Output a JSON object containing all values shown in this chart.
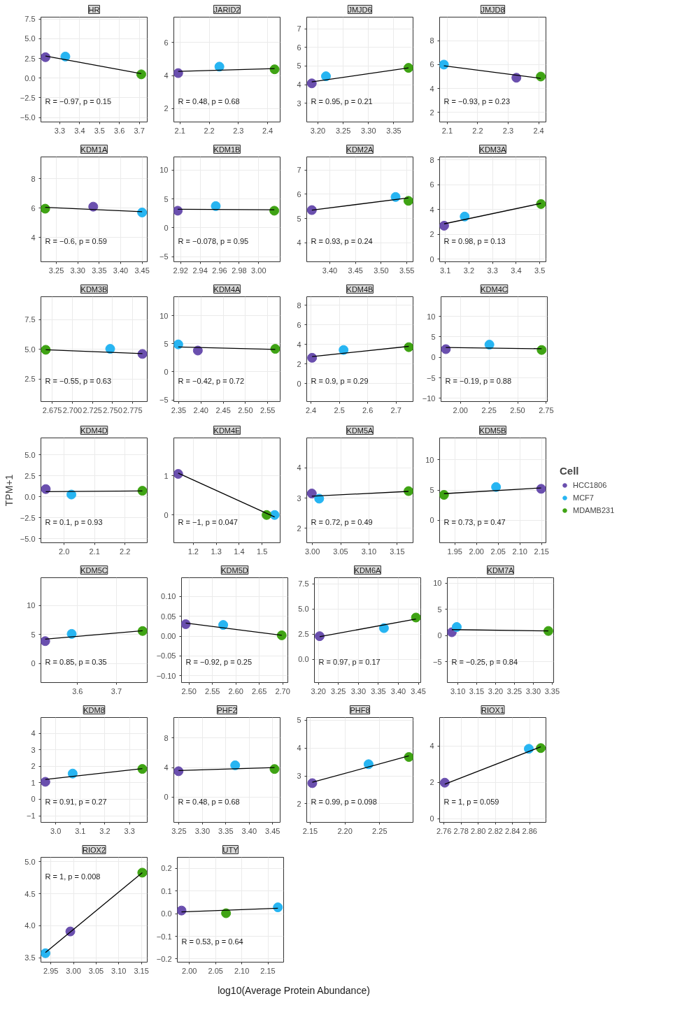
{
  "chart_data": [
    {
      "type": "scatter",
      "title": "HR",
      "marker": "circle",
      "grid": true,
      "xlim": [
        3.205,
        3.74
      ],
      "ylim": [
        -5.56,
        7.74
      ],
      "xticks": [
        3.3,
        3.4,
        3.5,
        3.6,
        3.7
      ],
      "yticks": [
        {
          "value": -5,
          "label": "−5.0"
        },
        {
          "value": -2.5,
          "label": "−2.5"
        },
        {
          "value": 0,
          "label": "0.0"
        },
        2.5,
        {
          "value": 5,
          "label": "5.0"
        },
        7.5
      ],
      "annotations": [
        "R = −0.97, p = 0.15"
      ],
      "series": [
        {
          "color": "#6a4fae",
          "x": [
            3.228
          ],
          "values": [
            2.66
          ]
        },
        {
          "color": "#27b5f2",
          "x": [
            3.328
          ],
          "values": [
            2.74
          ]
        },
        {
          "color": "#3fa314",
          "x": [
            3.71
          ],
          "values": [
            0.48
          ]
        },
        {
          "type": "line",
          "marker": "none",
          "color": "#000000",
          "x": [
            3.228,
            3.71
          ],
          "values": [
            2.8,
            0.56
          ]
        }
      ]
    },
    {
      "type": "scatter",
      "title": "JARID2",
      "marker": "circle",
      "grid": true,
      "xlim": [
        2.079,
        2.443
      ],
      "ylim": [
        1.19,
        7.54
      ],
      "xticks": [
        2.1,
        2.2,
        2.3,
        2.4
      ],
      "yticks": [
        2,
        4,
        6
      ],
      "annotations": [
        "R = 0.48, p = 0.68"
      ],
      "series": [
        {
          "color": "#6a4fae",
          "x": [
            2.094
          ],
          "values": [
            4.15
          ]
        },
        {
          "color": "#27b5f2",
          "x": [
            2.235
          ],
          "values": [
            4.54
          ]
        },
        {
          "color": "#3fa314",
          "x": [
            2.424
          ],
          "values": [
            4.38
          ]
        },
        {
          "type": "line",
          "marker": "none",
          "color": "#000000",
          "x": [
            2.094,
            2.424
          ],
          "values": [
            4.25,
            4.42
          ]
        }
      ]
    },
    {
      "type": "scatter",
      "title": "JMJD6",
      "marker": "circle",
      "grid": true,
      "xlim": [
        3.178,
        3.388
      ],
      "ylim": [
        2.0,
        7.62
      ],
      "xticks": [
        {
          "value": 3.2,
          "label": "3.20"
        },
        3.25,
        {
          "value": 3.3,
          "label": "3.30"
        },
        3.35
      ],
      "yticks": [
        3,
        4,
        5,
        6,
        7
      ],
      "annotations": [
        "R = 0.95, p = 0.21"
      ],
      "series": [
        {
          "color": "#6a4fae",
          "x": [
            3.188
          ],
          "values": [
            4.07
          ]
        },
        {
          "color": "#27b5f2",
          "x": [
            3.216
          ],
          "values": [
            4.45
          ]
        },
        {
          "color": "#3fa314",
          "x": [
            3.379
          ],
          "values": [
            4.9
          ]
        },
        {
          "type": "line",
          "marker": "none",
          "color": "#000000",
          "x": [
            3.188,
            3.379
          ],
          "values": [
            4.15,
            4.9
          ]
        }
      ]
    },
    {
      "type": "scatter",
      "title": "JMJD8",
      "marker": "circle",
      "grid": true,
      "xlim": [
        2.075,
        2.424
      ],
      "ylim": [
        1.2,
        9.97
      ],
      "xticks": [
        2.1,
        2.2,
        2.3,
        2.4
      ],
      "yticks": [
        2,
        4,
        6,
        8
      ],
      "annotations": [
        "R = −0.93, p = 0.23"
      ],
      "series": [
        {
          "color": "#6a4fae",
          "x": [
            2.327
          ],
          "values": [
            4.9
          ]
        },
        {
          "color": "#27b5f2",
          "x": [
            2.089
          ],
          "values": [
            6.0
          ]
        },
        {
          "color": "#3fa314",
          "x": [
            2.407
          ],
          "values": [
            5.0
          ]
        },
        {
          "type": "line",
          "marker": "none",
          "color": "#000000",
          "x": [
            2.089,
            2.407
          ],
          "values": [
            5.9,
            4.85
          ]
        }
      ]
    },
    {
      "type": "scatter",
      "title": "KDM1A",
      "marker": "circle",
      "grid": true,
      "xlim": [
        3.214,
        3.462
      ],
      "ylim": [
        2.33,
        9.5
      ],
      "xticks": [
        3.25,
        {
          "value": 3.3,
          "label": "3.30"
        },
        3.35,
        {
          "value": 3.4,
          "label": "3.40"
        },
        3.45
      ],
      "yticks": [
        4,
        6,
        8
      ],
      "annotations": [
        "R = −0.6, p = 0.59"
      ],
      "series": [
        {
          "color": "#6a4fae",
          "x": [
            3.336
          ],
          "values": [
            6.1
          ]
        },
        {
          "color": "#27b5f2",
          "x": [
            3.45
          ],
          "values": [
            5.7
          ]
        },
        {
          "color": "#3fa314",
          "x": [
            3.224
          ],
          "values": [
            5.96
          ]
        },
        {
          "type": "line",
          "marker": "none",
          "color": "#000000",
          "x": [
            3.224,
            3.45
          ],
          "values": [
            6.05,
            5.75
          ]
        }
      ]
    },
    {
      "type": "scatter",
      "title": "KDM1B",
      "marker": "circle",
      "grid": true,
      "xlim": [
        2.913,
        3.022
      ],
      "ylim": [
        -5.9,
        12.27
      ],
      "xticks": [
        2.92,
        2.94,
        2.96,
        2.98,
        {
          "value": 3,
          "label": "3.00"
        }
      ],
      "yticks": [
        {
          "value": -5,
          "label": "−5"
        },
        0,
        5,
        10
      ],
      "annotations": [
        "R = −0.078, p = 0.95"
      ],
      "series": [
        {
          "color": "#6a4fae",
          "x": [
            2.917
          ],
          "values": [
            2.95
          ]
        },
        {
          "color": "#27b5f2",
          "x": [
            2.956
          ],
          "values": [
            3.75
          ]
        },
        {
          "color": "#3fa314",
          "x": [
            3.016
          ],
          "values": [
            2.95
          ]
        },
        {
          "type": "line",
          "marker": "none",
          "color": "#000000",
          "x": [
            2.917,
            3.016
          ],
          "values": [
            3.2,
            3.1
          ]
        }
      ]
    },
    {
      "type": "scatter",
      "title": "KDM2A",
      "marker": "circle",
      "grid": true,
      "xlim": [
        3.355,
        3.562
      ],
      "ylim": [
        3.22,
        7.54
      ],
      "xticks": [
        {
          "value": 3.4,
          "label": "3.40"
        },
        3.45,
        {
          "value": 3.5,
          "label": "3.50"
        },
        3.55
      ],
      "yticks": [
        4,
        5,
        6,
        7
      ],
      "annotations": [
        "R = 0.93, p = 0.24"
      ],
      "series": [
        {
          "color": "#6a4fae",
          "x": [
            3.365
          ],
          "values": [
            5.35
          ]
        },
        {
          "color": "#27b5f2",
          "x": [
            3.528
          ],
          "values": [
            5.89
          ]
        },
        {
          "color": "#3fa314",
          "x": [
            3.553
          ],
          "values": [
            5.73
          ]
        },
        {
          "type": "line",
          "marker": "none",
          "color": "#000000",
          "x": [
            3.365,
            3.553
          ],
          "values": [
            5.35,
            5.85
          ]
        }
      ]
    },
    {
      "type": "scatter",
      "title": "KDM3A",
      "marker": "circle",
      "grid": true,
      "xlim": [
        3.076,
        3.526
      ],
      "ylim": [
        -0.21,
        8.25
      ],
      "xticks": [
        3.1,
        3.2,
        3.3,
        3.4,
        3.5
      ],
      "yticks": [
        0,
        2,
        4,
        6,
        8
      ],
      "annotations": [
        "R = 0.98, p = 0.13"
      ],
      "series": [
        {
          "color": "#6a4fae",
          "x": [
            3.095
          ],
          "values": [
            2.7
          ]
        },
        {
          "color": "#27b5f2",
          "x": [
            3.182
          ],
          "values": [
            3.44
          ]
        },
        {
          "color": "#3fa314",
          "x": [
            3.505
          ],
          "values": [
            4.45
          ]
        },
        {
          "type": "line",
          "marker": "none",
          "color": "#000000",
          "x": [
            3.095,
            3.505
          ],
          "values": [
            2.85,
            4.5
          ]
        }
      ]
    },
    {
      "type": "scatter",
      "title": "KDM3B",
      "marker": "circle",
      "grid": true,
      "xlim": [
        2.661,
        2.793
      ],
      "ylim": [
        0.61,
        9.44
      ],
      "xticks": [
        2.675,
        {
          "value": 2.7,
          "label": "2.700"
        },
        2.725,
        {
          "value": 2.75,
          "label": "2.750"
        },
        2.775
      ],
      "yticks": [
        2.5,
        {
          "value": 5,
          "label": "5.0"
        },
        7.5
      ],
      "annotations": [
        "R = −0.55, p = 0.63"
      ],
      "series": [
        {
          "color": "#6a4fae",
          "x": [
            2.787
          ],
          "values": [
            4.62
          ]
        },
        {
          "color": "#27b5f2",
          "x": [
            2.747
          ],
          "values": [
            5.05
          ]
        },
        {
          "color": "#3fa314",
          "x": [
            2.667
          ],
          "values": [
            4.97
          ]
        },
        {
          "type": "line",
          "marker": "none",
          "color": "#000000",
          "x": [
            2.667,
            2.787
          ],
          "values": [
            4.97,
            4.65
          ]
        }
      ]
    },
    {
      "type": "scatter",
      "title": "KDM4A",
      "marker": "circle",
      "grid": true,
      "xlim": [
        2.339,
        2.578
      ],
      "ylim": [
        -5.3,
        13.4
      ],
      "xticks": [
        2.35,
        {
          "value": 2.4,
          "label": "2.40"
        },
        2.45,
        {
          "value": 2.5,
          "label": "2.50"
        },
        2.55
      ],
      "yticks": [
        {
          "value": -5,
          "label": "−5"
        },
        0,
        5,
        10
      ],
      "annotations": [
        "R = −0.42, p = 0.72"
      ],
      "series": [
        {
          "color": "#6a4fae",
          "x": [
            2.393
          ],
          "values": [
            3.8
          ]
        },
        {
          "color": "#27b5f2",
          "x": [
            2.349
          ],
          "values": [
            4.9
          ]
        },
        {
          "color": "#3fa314",
          "x": [
            2.567
          ],
          "values": [
            4.1
          ]
        },
        {
          "type": "line",
          "marker": "none",
          "color": "#000000",
          "x": [
            2.349,
            2.567
          ],
          "values": [
            4.45,
            4.0
          ]
        }
      ]
    },
    {
      "type": "scatter",
      "title": "KDM4B",
      "marker": "circle",
      "grid": true,
      "xlim": [
        2.385,
        2.76
      ],
      "ylim": [
        -1.85,
        8.88
      ],
      "xticks": [
        2.4,
        2.5,
        2.6,
        2.7
      ],
      "yticks": [
        0,
        2,
        4,
        6,
        8
      ],
      "annotations": [
        "R = 0.9, p = 0.29"
      ],
      "series": [
        {
          "color": "#6a4fae",
          "x": [
            2.404
          ],
          "values": [
            2.63
          ]
        },
        {
          "color": "#27b5f2",
          "x": [
            2.515
          ],
          "values": [
            3.43
          ]
        },
        {
          "color": "#3fa314",
          "x": [
            2.745
          ],
          "values": [
            3.72
          ]
        },
        {
          "type": "line",
          "marker": "none",
          "color": "#000000",
          "x": [
            2.404,
            2.745
          ],
          "values": [
            2.75,
            3.8
          ]
        }
      ]
    },
    {
      "type": "scatter",
      "title": "KDM4C",
      "marker": "circle",
      "grid": true,
      "xlim": [
        1.83,
        2.76
      ],
      "ylim": [
        -10.8,
        14.8
      ],
      "xticks": [
        {
          "value": 2,
          "label": "2.00"
        },
        2.25,
        {
          "value": 2.5,
          "label": "2.50"
        },
        2.75
      ],
      "yticks": [
        {
          "value": -10,
          "label": "−10"
        },
        {
          "value": -5,
          "label": "−5"
        },
        0,
        5,
        10
      ],
      "annotations": [
        "R = −0.19, p = 0.88"
      ],
      "series": [
        {
          "color": "#6a4fae",
          "x": [
            1.872
          ],
          "values": [
            2.0
          ]
        },
        {
          "color": "#27b5f2",
          "x": [
            2.253
          ],
          "values": [
            3.1
          ]
        },
        {
          "color": "#3fa314",
          "x": [
            2.71
          ],
          "values": [
            1.8
          ]
        },
        {
          "type": "line",
          "marker": "none",
          "color": "#000000",
          "x": [
            1.872,
            2.71
          ],
          "values": [
            2.4,
            2.1
          ]
        }
      ]
    },
    {
      "type": "scatter",
      "title": "KDM4D",
      "ylabel": "TPM+1",
      "marker": "circle",
      "grid": true,
      "xlim": [
        1.924,
        2.273
      ],
      "ylim": [
        -5.5,
        7.0
      ],
      "xticks": [
        {
          "value": 2,
          "label": "2.0"
        },
        2.1,
        2.2
      ],
      "yticks": [
        {
          "value": -5,
          "label": "−5.0"
        },
        {
          "value": -2.5,
          "label": "−2.5"
        },
        {
          "value": 0,
          "label": "0.0"
        },
        2.5,
        {
          "value": 5,
          "label": "5.0"
        }
      ],
      "annotations": [
        "R = 0.1, p = 0.93"
      ],
      "series": [
        {
          "color": "#6a4fae",
          "x": [
            1.94
          ],
          "values": [
            0.9
          ]
        },
        {
          "color": "#27b5f2",
          "x": [
            2.024
          ],
          "values": [
            0.25
          ]
        },
        {
          "color": "#3fa314",
          "x": [
            2.257
          ],
          "values": [
            0.7
          ]
        },
        {
          "type": "line",
          "marker": "none",
          "color": "#000000",
          "x": [
            1.94,
            2.257
          ],
          "values": [
            0.6,
            0.68
          ]
        }
      ]
    },
    {
      "type": "scatter",
      "title": "KDM4E",
      "marker": "circle",
      "grid": true,
      "xlim": [
        1.115,
        1.579
      ],
      "ylim": [
        -0.71,
        1.97
      ],
      "xticks": [
        1.2,
        1.3,
        1.4,
        1.5
      ],
      "yticks": [
        0,
        1
      ],
      "annotations": [
        "R = −1, p = 0.047"
      ],
      "series": [
        {
          "color": "#6a4fae",
          "x": [
            1.134
          ],
          "values": [
            1.05
          ]
        },
        {
          "color": "#27b5f2",
          "x": [
            1.555
          ],
          "values": [
            0
          ]
        },
        {
          "color": "#3fa314",
          "x": [
            1.52
          ],
          "values": [
            0
          ]
        },
        {
          "type": "line",
          "marker": "none",
          "color": "#000000",
          "x": [
            1.134,
            1.555
          ],
          "values": [
            1.07,
            -0.05
          ]
        }
      ]
    },
    {
      "type": "scatter",
      "title": "KDM5A",
      "marker": "circle",
      "grid": true,
      "xlim": [
        2.99,
        3.178
      ],
      "ylim": [
        1.52,
        4.99
      ],
      "xticks": [
        {
          "value": 3,
          "label": "3.00"
        },
        3.05,
        {
          "value": 3.1,
          "label": "3.10"
        },
        3.15
      ],
      "yticks": [
        2,
        3,
        4
      ],
      "annotations": [
        "R = 0.72, p = 0.49"
      ],
      "series": [
        {
          "color": "#6a4fae",
          "x": [
            2.999
          ],
          "values": [
            3.15
          ]
        },
        {
          "color": "#27b5f2",
          "x": [
            3.012
          ],
          "values": [
            2.98
          ]
        },
        {
          "color": "#3fa314",
          "x": [
            3.17
          ],
          "values": [
            3.23
          ]
        },
        {
          "type": "line",
          "marker": "none",
          "color": "#000000",
          "x": [
            2.999,
            3.17
          ],
          "values": [
            3.06,
            3.22
          ]
        }
      ]
    },
    {
      "type": "scatter",
      "title": "KDM5B",
      "legend": "right",
      "legend_title": "Cell",
      "marker": "circle",
      "grid": true,
      "xlim": [
        1.915,
        2.16
      ],
      "ylim": [
        -3.7,
        13.6
      ],
      "xticks": [
        1.95,
        {
          "value": 2,
          "label": "2.00"
        },
        2.05,
        {
          "value": 2.1,
          "label": "2.10"
        },
        2.15
      ],
      "yticks": [
        0,
        5,
        10
      ],
      "annotations": [
        "R = 0.73, p = 0.47"
      ],
      "series": [
        {
          "name": "HCC1806",
          "color": "#6a4fae",
          "x": [
            2.149
          ],
          "values": [
            5.2
          ]
        },
        {
          "name": "MCF7",
          "color": "#27b5f2",
          "x": [
            2.045
          ],
          "values": [
            5.5
          ]
        },
        {
          "name": "MDAMB231",
          "color": "#3fa314",
          "x": [
            1.925
          ],
          "values": [
            4.2
          ]
        },
        {
          "type": "line",
          "marker": "none",
          "color": "#000000",
          "x": [
            1.925,
            2.149
          ],
          "values": [
            4.4,
            5.35
          ]
        }
      ]
    },
    {
      "type": "scatter",
      "title": "KDM5C",
      "marker": "circle",
      "grid": true,
      "xlim": [
        3.506,
        3.779
      ],
      "ylim": [
        -3.3,
        14.8
      ],
      "xticks": [
        3.6,
        3.7
      ],
      "yticks": [
        0,
        5,
        10
      ],
      "annotations": [
        "R = 0.85, p = 0.35"
      ],
      "series": [
        {
          "color": "#6a4fae",
          "x": [
            3.517
          ],
          "values": [
            3.85
          ]
        },
        {
          "color": "#27b5f2",
          "x": [
            3.585
          ],
          "values": [
            5.1
          ]
        },
        {
          "color": "#3fa314",
          "x": [
            3.767
          ],
          "values": [
            5.6
          ]
        },
        {
          "type": "line",
          "marker": "none",
          "color": "#000000",
          "x": [
            3.517,
            3.767
          ],
          "values": [
            4.2,
            5.65
          ]
        }
      ]
    },
    {
      "type": "scatter",
      "title": "KDM5D",
      "marker": "circle",
      "grid": true,
      "xlim": [
        2.484,
        2.711
      ],
      "ylim": [
        -0.117,
        0.147
      ],
      "xticks": [
        {
          "value": 2.5,
          "label": "2.50"
        },
        2.55,
        {
          "value": 2.6,
          "label": "2.60"
        },
        2.65,
        {
          "value": 2.7,
          "label": "2.70"
        }
      ],
      "yticks": [
        {
          "value": -0.1,
          "label": "−0.10"
        },
        {
          "value": -0.05,
          "label": "−0.05"
        },
        {
          "value": 0,
          "label": "0.00"
        },
        0.05,
        {
          "value": 0.1,
          "label": "0.10"
        }
      ],
      "annotations": [
        "R = −0.92, p = 0.25"
      ],
      "series": [
        {
          "color": "#6a4fae",
          "x": [
            2.493
          ],
          "values": [
            0.03
          ]
        },
        {
          "color": "#27b5f2",
          "x": [
            2.573
          ],
          "values": [
            0.028
          ]
        },
        {
          "color": "#3fa314",
          "x": [
            2.698
          ],
          "values": [
            0.002
          ]
        },
        {
          "type": "line",
          "marker": "none",
          "color": "#000000",
          "x": [
            2.493,
            2.698
          ],
          "values": [
            0.033,
            0.002
          ]
        }
      ]
    },
    {
      "type": "scatter",
      "title": "KDM6A",
      "marker": "circle",
      "grid": true,
      "xlim": [
        3.19,
        3.456
      ],
      "ylim": [
        -2.3,
        8.1
      ],
      "xticks": [
        {
          "value": 3.2,
          "label": "3.20"
        },
        3.25,
        {
          "value": 3.3,
          "label": "3.30"
        },
        3.35,
        {
          "value": 3.4,
          "label": "3.40"
        },
        3.45
      ],
      "yticks": [
        {
          "value": 0,
          "label": "0.0"
        },
        2.5,
        {
          "value": 5,
          "label": "5.0"
        },
        7.5
      ],
      "annotations": [
        "R = 0.97, p = 0.17"
      ],
      "series": [
        {
          "color": "#6a4fae",
          "x": [
            3.203
          ],
          "values": [
            2.3
          ]
        },
        {
          "color": "#27b5f2",
          "x": [
            3.364
          ],
          "values": [
            3.1
          ]
        },
        {
          "color": "#3fa314",
          "x": [
            3.444
          ],
          "values": [
            4.15
          ]
        },
        {
          "type": "line",
          "marker": "none",
          "color": "#000000",
          "x": [
            3.203,
            3.444
          ],
          "values": [
            2.25,
            4.0
          ]
        }
      ]
    },
    {
      "type": "scatter",
      "title": "KDM7A",
      "marker": "circle",
      "grid": true,
      "xlim": [
        3.072,
        3.354
      ],
      "ylim": [
        -9.0,
        11.0
      ],
      "xticks": [
        {
          "value": 3.1,
          "label": "3.10"
        },
        3.15,
        {
          "value": 3.2,
          "label": "3.20"
        },
        3.25,
        {
          "value": 3.3,
          "label": "3.30"
        },
        3.35
      ],
      "yticks": [
        {
          "value": -5,
          "label": "−5"
        },
        0,
        5,
        10
      ],
      "annotations": [
        "R = −0.25, p = 0.84"
      ],
      "series": [
        {
          "color": "#6a4fae",
          "x": [
            3.084
          ],
          "values": [
            0.6
          ]
        },
        {
          "color": "#27b5f2",
          "x": [
            3.097
          ],
          "values": [
            1.6
          ]
        },
        {
          "color": "#3fa314",
          "x": [
            3.34
          ],
          "values": [
            0.85
          ]
        },
        {
          "type": "line",
          "marker": "none",
          "color": "#000000",
          "x": [
            3.084,
            3.34
          ],
          "values": [
            1.1,
            0.85
          ]
        }
      ]
    },
    {
      "type": "scatter",
      "title": "KDM8",
      "marker": "circle",
      "grid": true,
      "xlim": [
        2.94,
        3.372
      ],
      "ylim": [
        -1.4,
        4.96
      ],
      "xticks": [
        {
          "value": 3,
          "label": "3.0"
        },
        3.1,
        3.2,
        3.3
      ],
      "yticks": [
        {
          "value": -1,
          "label": "−1"
        },
        0,
        1,
        2,
        3,
        4
      ],
      "annotations": [
        "R = 0.91, p = 0.27"
      ],
      "series": [
        {
          "color": "#6a4fae",
          "x": [
            2.958
          ],
          "values": [
            1.06
          ]
        },
        {
          "color": "#27b5f2",
          "x": [
            3.069
          ],
          "values": [
            1.56
          ]
        },
        {
          "color": "#3fa314",
          "x": [
            3.352
          ],
          "values": [
            1.84
          ]
        },
        {
          "type": "line",
          "marker": "none",
          "color": "#000000",
          "x": [
            2.958,
            3.352
          ],
          "values": [
            1.2,
            1.86
          ]
        }
      ]
    },
    {
      "type": "scatter",
      "title": "PHF2",
      "marker": "circle",
      "grid": true,
      "xlim": [
        3.239,
        3.466
      ],
      "ylim": [
        -3.4,
        10.75
      ],
      "xticks": [
        3.25,
        {
          "value": 3.3,
          "label": "3.30"
        },
        3.35,
        {
          "value": 3.4,
          "label": "3.40"
        },
        3.45
      ],
      "yticks": [
        0,
        4,
        8
      ],
      "annotations": [
        "R = 0.48, p = 0.68"
      ],
      "series": [
        {
          "color": "#6a4fae",
          "x": [
            3.249
          ],
          "values": [
            3.5
          ]
        },
        {
          "color": "#27b5f2",
          "x": [
            3.37
          ],
          "values": [
            4.3
          ]
        },
        {
          "color": "#3fa314",
          "x": [
            3.454
          ],
          "values": [
            3.8
          ]
        },
        {
          "type": "line",
          "marker": "none",
          "color": "#000000",
          "x": [
            3.249,
            3.454
          ],
          "values": [
            3.6,
            4.0
          ]
        }
      ]
    },
    {
      "type": "scatter",
      "title": "PHF8",
      "marker": "circle",
      "grid": true,
      "xlim": [
        2.145,
        2.298
      ],
      "ylim": [
        1.33,
        5.1
      ],
      "xticks": [
        2.15,
        {
          "value": 2.2,
          "label": "2.20"
        },
        2.25
      ],
      "yticks": [
        2,
        3,
        4,
        5
      ],
      "annotations": [
        "R = 0.99, p = 0.098"
      ],
      "series": [
        {
          "color": "#6a4fae",
          "x": [
            2.153
          ],
          "values": [
            2.74
          ]
        },
        {
          "color": "#27b5f2",
          "x": [
            2.234
          ],
          "values": [
            3.42
          ]
        },
        {
          "color": "#3fa314",
          "x": [
            2.292
          ],
          "values": [
            3.68
          ]
        },
        {
          "type": "line",
          "marker": "none",
          "color": "#000000",
          "x": [
            2.153,
            2.292
          ],
          "values": [
            2.77,
            3.72
          ]
        }
      ]
    },
    {
      "type": "scatter",
      "title": "RIOX1",
      "marker": "circle",
      "grid": true,
      "xlim": [
        2.755,
        2.879
      ],
      "ylim": [
        -0.2,
        5.56
      ],
      "xticks": [
        2.76,
        2.78,
        {
          "value": 2.8,
          "label": "2.80"
        },
        2.82,
        2.84,
        2.86
      ],
      "yticks": [
        0,
        2,
        4
      ],
      "annotations": [
        "R = 1, p = 0.059"
      ],
      "series": [
        {
          "color": "#6a4fae",
          "x": [
            2.761
          ],
          "values": [
            1.98
          ]
        },
        {
          "color": "#27b5f2",
          "x": [
            2.859
          ],
          "values": [
            3.84
          ]
        },
        {
          "color": "#3fa314",
          "x": [
            2.873
          ],
          "values": [
            3.88
          ]
        },
        {
          "type": "line",
          "marker": "none",
          "color": "#000000",
          "x": [
            2.761,
            2.873
          ],
          "values": [
            1.9,
            3.95
          ]
        }
      ]
    },
    {
      "type": "scatter",
      "title": "RIOX2",
      "marker": "circle",
      "grid": true,
      "xlim": [
        2.928,
        3.163
      ],
      "ylim": [
        3.43,
        5.07
      ],
      "xticks": [
        2.95,
        {
          "value": 3,
          "label": "3.00"
        },
        3.05,
        {
          "value": 3.1,
          "label": "3.10"
        },
        3.15
      ],
      "yticks": [
        3.5,
        {
          "value": 4,
          "label": "4.0"
        },
        4.5,
        {
          "value": 5,
          "label": "5.0"
        }
      ],
      "annotations": [
        "R = 1, p = 0.008"
      ],
      "series": [
        {
          "color": "#6a4fae",
          "x": [
            2.993
          ],
          "values": [
            3.91
          ]
        },
        {
          "color": "#27b5f2",
          "x": [
            2.938
          ],
          "values": [
            3.57
          ]
        },
        {
          "color": "#3fa314",
          "x": [
            3.152
          ],
          "values": [
            4.83
          ]
        },
        {
          "type": "line",
          "marker": "none",
          "color": "#000000",
          "x": [
            2.938,
            3.152
          ],
          "values": [
            3.58,
            4.83
          ]
        }
      ]
    },
    {
      "type": "scatter",
      "title": "UTY",
      "xlabel": "log10(Average Protein Abundance)",
      "marker": "circle",
      "grid": true,
      "xlim": [
        1.977,
        2.18
      ],
      "ylim": [
        -0.214,
        0.249
      ],
      "xticks": [
        {
          "value": 2,
          "label": "2.00"
        },
        2.05,
        {
          "value": 2.1,
          "label": "2.10"
        },
        2.15
      ],
      "yticks": [
        {
          "value": -0.2,
          "label": "−0.2"
        },
        {
          "value": -0.1,
          "label": "−0.1"
        },
        {
          "value": 0,
          "label": "0.0"
        },
        0.1,
        0.2
      ],
      "annotations": [
        "R = 0.53, p = 0.64"
      ],
      "series": [
        {
          "color": "#6a4fae",
          "x": [
            1.985
          ],
          "values": [
            0.014
          ]
        },
        {
          "color": "#27b5f2",
          "x": [
            2.169
          ],
          "values": [
            0.028
          ]
        },
        {
          "color": "#3fa314",
          "x": [
            2.07
          ],
          "values": [
            0.002
          ]
        },
        {
          "type": "line",
          "marker": "none",
          "color": "#000000",
          "x": [
            1.985,
            2.169
          ],
          "values": [
            0.008,
            0.024
          ]
        }
      ]
    }
  ]
}
